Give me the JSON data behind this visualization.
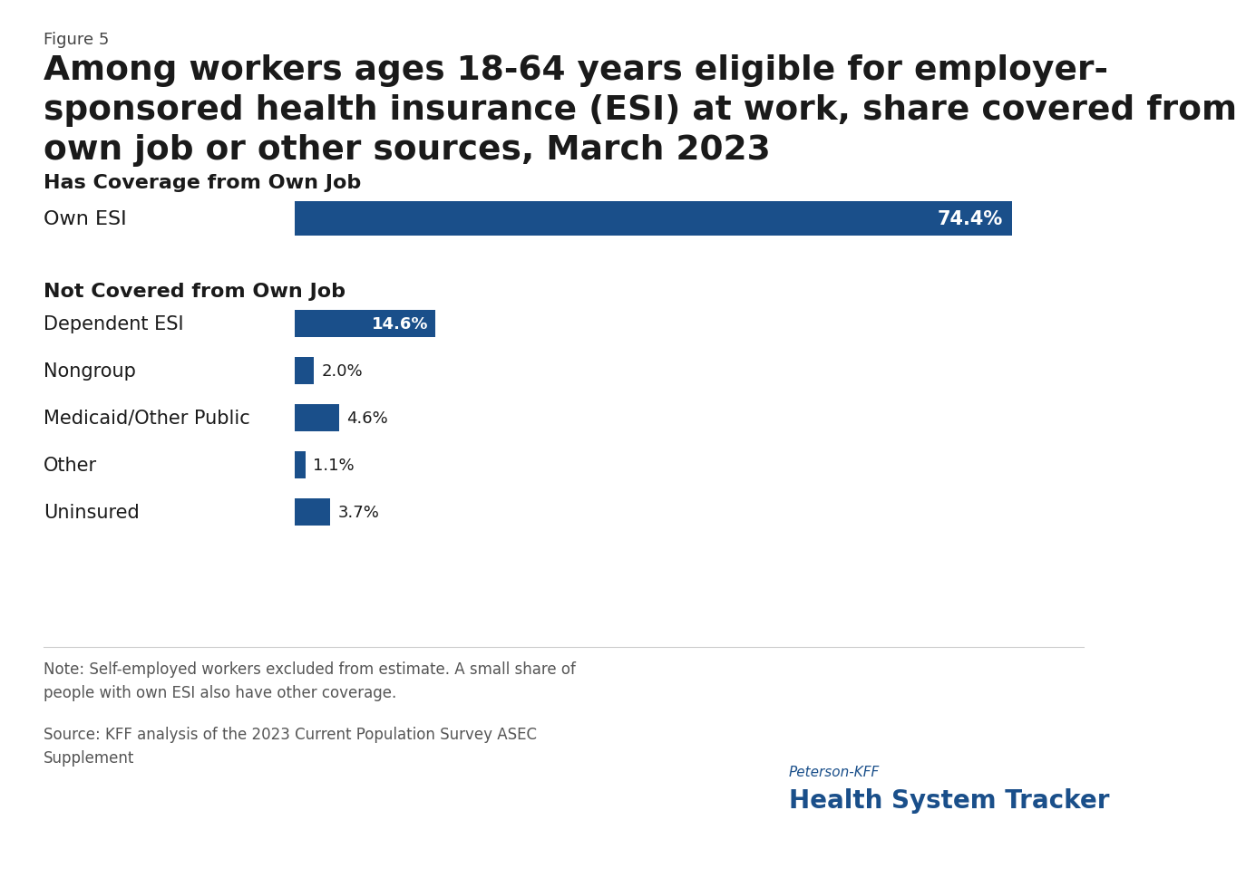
{
  "figure_label": "Figure 5",
  "title": "Among workers ages 18-64 years eligible for employer-\nsponsored health insurance (ESI) at work, share covered from\nown job or other sources, March 2023",
  "section1_header": "Has Coverage from Own Job",
  "section2_header": "Not Covered from Own Job",
  "categories_section1": [
    "Own ESI"
  ],
  "values_section1": [
    74.4
  ],
  "labels_section1": [
    "74.4%"
  ],
  "categories_section2": [
    "Dependent ESI",
    "Nongroup",
    "Medicaid/Other Public",
    "Other",
    "Uninsured"
  ],
  "values_section2": [
    14.6,
    2.0,
    4.6,
    1.1,
    3.7
  ],
  "labels_section2": [
    "14.6%",
    "2.0%",
    "4.6%",
    "1.1%",
    "3.7%"
  ],
  "bar_color": "#1a4f8a",
  "note_text": "Note: Self-employed workers excluded from estimate. A small share of\npeople with own ESI also have other coverage.",
  "source_text": "Source: KFF analysis of the 2023 Current Population Survey ASEC\nSupplement",
  "logo_line1": "Peterson-KFF",
  "logo_line2": "Health System Tracker",
  "background_color": "#ffffff",
  "text_color": "#1a1a1a",
  "scale_max": 80
}
